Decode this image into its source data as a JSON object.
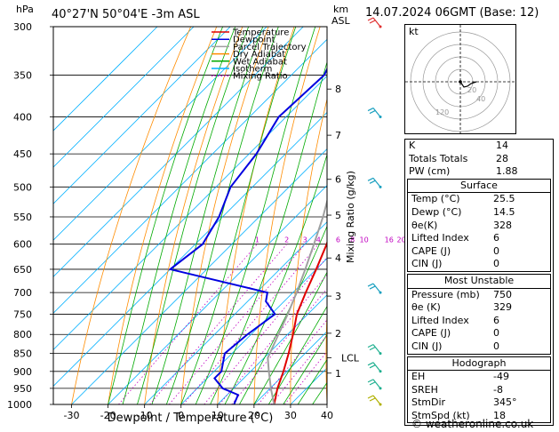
{
  "header": {
    "location": "40°27'N  50°04'E  -3m ASL",
    "hpa_label": "hPa",
    "km_label": "km",
    "asl_label": "ASL",
    "date": "14.07.2024  06GMT  (Base: 12)"
  },
  "credit": "© weatheronline.co.uk",
  "chart_data": {
    "type": "line",
    "title": "",
    "xlabel": "Dewpoint / Temperature (°C)",
    "ylabel": "",
    "right_axis_label": "Mixing Ratio (g/kg)",
    "xlim": [
      -35,
      40
    ],
    "x_ticks": [
      -30,
      -20,
      -10,
      0,
      10,
      20,
      30,
      40
    ],
    "pressure_levels": [
      300,
      350,
      400,
      450,
      500,
      550,
      600,
      650,
      700,
      750,
      800,
      850,
      900,
      950,
      1000
    ],
    "ylim_hpa": [
      300,
      1000
    ],
    "height_ticks_km": [
      {
        "km": "1",
        "p": 905
      },
      {
        "km": "2",
        "p": 797
      },
      {
        "km": "3",
        "p": 708
      },
      {
        "km": "4",
        "p": 627
      },
      {
        "km": "5",
        "p": 547
      },
      {
        "km": "6",
        "p": 488
      },
      {
        "km": "7",
        "p": 424
      },
      {
        "km": "8",
        "p": 366
      }
    ],
    "lcl": {
      "label": "LCL",
      "p": 862
    },
    "mixing_ratio_labels": [
      "1",
      "2",
      "3",
      "4",
      "6",
      "8",
      "10",
      "16",
      "20",
      "25"
    ],
    "mixing_ratio_values": [
      1,
      2,
      3,
      4,
      6,
      8,
      10,
      16,
      20,
      25
    ],
    "legend": {
      "placement": "top-center",
      "items": [
        {
          "label": "Temperature",
          "color": "#e00000",
          "dash": "solid"
        },
        {
          "label": "Dewpoint",
          "color": "#0000e0",
          "dash": "solid"
        },
        {
          "label": "Parcel Trajectory",
          "color": "#a0a0a0",
          "dash": "solid"
        },
        {
          "label": "Dry Adiabat",
          "color": "#ff8c00",
          "dash": "solid"
        },
        {
          "label": "Wet Adiabat",
          "color": "#00aa00",
          "dash": "solid"
        },
        {
          "label": "Isotherm",
          "color": "#00b0ff",
          "dash": "solid"
        },
        {
          "label": "Mixing Ratio",
          "color": "#c000c0",
          "dash": "dotted"
        }
      ]
    },
    "series": [
      {
        "name": "Temperature",
        "color": "#e00000",
        "points": [
          [
            1000,
            25.5
          ],
          [
            950,
            22
          ],
          [
            900,
            19
          ],
          [
            850,
            15.5
          ],
          [
            800,
            11.5
          ],
          [
            750,
            7
          ],
          [
            700,
            3.5
          ],
          [
            650,
            0
          ],
          [
            600,
            -4
          ],
          [
            550,
            -9
          ],
          [
            500,
            -14
          ],
          [
            450,
            -20
          ],
          [
            400,
            -27
          ],
          [
            350,
            -34
          ],
          [
            300,
            -42
          ]
        ]
      },
      {
        "name": "Dewpoint",
        "color": "#0000e0",
        "points": [
          [
            1000,
            14.5
          ],
          [
            970,
            13
          ],
          [
            950,
            7
          ],
          [
            920,
            2
          ],
          [
            900,
            2
          ],
          [
            850,
            -2
          ],
          [
            800,
            -1
          ],
          [
            750,
            1
          ],
          [
            720,
            -5
          ],
          [
            700,
            -7
          ],
          [
            650,
            -40
          ],
          [
            600,
            -38
          ],
          [
            550,
            -41
          ],
          [
            500,
            -46
          ],
          [
            450,
            -48
          ],
          [
            400,
            -52
          ],
          [
            350,
            -51
          ],
          [
            320,
            -55
          ],
          [
            300,
            -57
          ]
        ]
      },
      {
        "name": "Parcel Trajectory",
        "color": "#a0a0a0",
        "points": [
          [
            1000,
            25.5
          ],
          [
            950,
            20.2
          ],
          [
            900,
            15
          ],
          [
            862,
            11
          ],
          [
            800,
            7.5
          ],
          [
            750,
            4.5
          ],
          [
            700,
            1
          ],
          [
            650,
            -3
          ],
          [
            600,
            -7.5
          ],
          [
            550,
            -12.5
          ],
          [
            500,
            -18.5
          ],
          [
            450,
            -25
          ],
          [
            400,
            -32.5
          ],
          [
            350,
            -41
          ],
          [
            300,
            -51
          ]
        ]
      }
    ],
    "wind_barb_levels": [
      300,
      400,
      500,
      700,
      850,
      900,
      950,
      1000
    ]
  },
  "hodograph": {
    "unit_label": "kt",
    "ring_labels": [
      "20",
      "40"
    ],
    "corner_label": "120"
  },
  "indices": {
    "rows": [
      {
        "label": "K",
        "value": "14"
      },
      {
        "label": "Totals Totals",
        "value": "28"
      },
      {
        "label": "PW (cm)",
        "value": "1.88"
      }
    ]
  },
  "surface": {
    "title": "Surface",
    "rows": [
      {
        "label": "Temp (°C)",
        "value": "25.5"
      },
      {
        "label": "Dewp (°C)",
        "value": "14.5"
      },
      {
        "label": "θe(K)",
        "value": "328"
      },
      {
        "label": "Lifted Index",
        "value": "6"
      },
      {
        "label": "CAPE (J)",
        "value": "0"
      },
      {
        "label": "CIN (J)",
        "value": "0"
      }
    ]
  },
  "most_unstable": {
    "title": "Most Unstable",
    "rows": [
      {
        "label": "Pressure (mb)",
        "value": "750"
      },
      {
        "label": "θe (K)",
        "value": "329"
      },
      {
        "label": "Lifted Index",
        "value": "6"
      },
      {
        "label": "CAPE (J)",
        "value": "0"
      },
      {
        "label": "CIN (J)",
        "value": "0"
      }
    ]
  },
  "hodograph_table": {
    "title": "Hodograph",
    "rows": [
      {
        "label": "EH",
        "value": "-49"
      },
      {
        "label": "SREH",
        "value": "-8"
      },
      {
        "label": "StmDir",
        "value": "345°"
      },
      {
        "label": "StmSpd (kt)",
        "value": "18"
      }
    ]
  }
}
